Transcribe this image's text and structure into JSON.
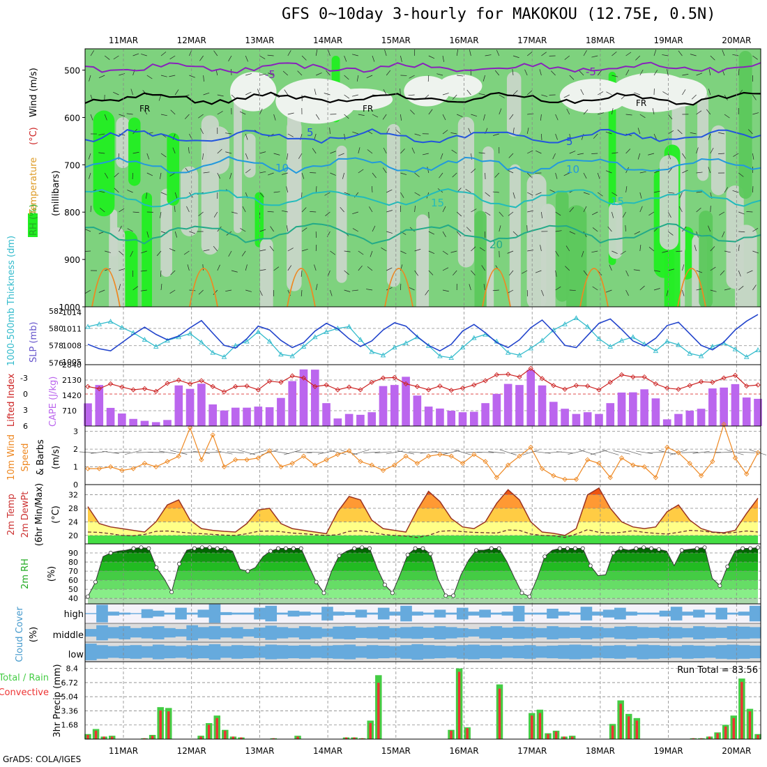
{
  "title": "GFS 0~10day 3-hourly for MAKOKOU (12.75E, 0.5N)",
  "footer": "GrADS: COLA/IGES",
  "chart_data": [
    {
      "type": "heatmap",
      "panel": "upper-air",
      "ylabel_parts": [
        {
          "text": "RH (%)",
          "color": "#22aa22"
        },
        {
          "text": "Temperature",
          "color": "#dd9922"
        },
        {
          "text": "(°C)",
          "color": "#cc2222"
        },
        {
          "text": "Wind (m/s)",
          "color": "#000000"
        }
      ],
      "ylabel2": "(millibars)",
      "yticks": [
        500,
        600,
        700,
        800,
        900,
        1000
      ],
      "ylim": [
        1000,
        455
      ],
      "dates_top": [
        "11MAR",
        "12MAR",
        "13MAR",
        "14MAR",
        "15MAR",
        "16MAR",
        "17MAR",
        "18MAR",
        "19MAR",
        "20MAR"
      ],
      "contour_labels": [
        "-5",
        "-5",
        "FR",
        "FR",
        "FR",
        "5",
        "5",
        "10",
        "10",
        "15",
        "15",
        "20"
      ],
      "contours": [
        {
          "name": "-5",
          "color": "#8822bb",
          "level_mb": 495
        },
        {
          "name": "FR",
          "color": "#000000",
          "level_mb": 560
        },
        {
          "name": "5",
          "color": "#2255dd",
          "level_mb": 640
        },
        {
          "name": "10",
          "color": "#2299dd",
          "level_mb": 700
        },
        {
          "name": "15",
          "color": "#22bbbb",
          "level_mb": 770
        },
        {
          "name": "20",
          "color": "#22aa88",
          "level_mb": 845
        }
      ]
    },
    {
      "type": "line",
      "panel": "thickness-slp",
      "ylabel_left": "1000-500mb Thickness (dm)",
      "ylabel_right": "SLP (mb)",
      "left_ticks": [
        576,
        578,
        580,
        582
      ],
      "right_ticks": [
        1005,
        1008,
        1011,
        1014
      ],
      "thickness_dm": [
        580.2,
        580.5,
        580.8,
        580.1,
        579.5,
        578.7,
        577.9,
        578.6,
        579.0,
        579.4,
        578.4,
        577.2,
        576.7,
        578.0,
        578.5,
        579.6,
        578.5,
        577.0,
        576.8,
        577.9,
        579.0,
        579.6,
        580.0,
        580.2,
        578.7,
        577.3,
        576.9,
        577.8,
        578.3,
        579.0,
        578.0,
        576.8,
        576.6,
        577.8,
        578.9,
        579.3,
        578.5,
        577.2,
        576.9,
        577.7,
        578.6,
        579.8,
        580.5,
        581.2,
        580.2,
        578.8,
        577.9,
        578.6,
        579.0,
        578.2,
        577.4,
        578.5,
        578.1,
        577.1,
        576.8,
        577.9,
        578.3,
        577.6,
        576.7,
        577.5
      ],
      "slp_mb": [
        1008.2,
        1007.4,
        1007.0,
        1008.5,
        1010.0,
        1011.3,
        1010.0,
        1009.0,
        1009.7,
        1011.2,
        1012.5,
        1010.2,
        1008.0,
        1007.5,
        1009.2,
        1011.5,
        1010.8,
        1008.9,
        1007.6,
        1008.5,
        1010.6,
        1012.0,
        1011.0,
        1009.2,
        1007.8,
        1008.8,
        1010.8,
        1012.1,
        1011.5,
        1009.6,
        1008.0,
        1007.0,
        1008.2,
        1010.6,
        1011.8,
        1010.3,
        1008.5,
        1007.6,
        1009.0,
        1011.2,
        1012.6,
        1010.5,
        1008.0,
        1007.6,
        1009.8,
        1012.0,
        1012.8,
        1010.9,
        1008.8,
        1007.9,
        1009.3,
        1011.6,
        1012.2,
        1010.1,
        1008.0,
        1007.2,
        1008.6,
        1010.8,
        1012.4,
        1013.6
      ],
      "series": [
        {
          "name": "1000-500mb Thickness (dm)",
          "color": "#33bbcc"
        },
        {
          "name": "SLP (mb)",
          "color": "#2244cc"
        }
      ]
    },
    {
      "type": "bar",
      "panel": "lifted-cape",
      "ylabel_left": "Lifted Index",
      "ylabel_right": "CAPE (J/kg)",
      "left_ticks": [
        -3,
        0,
        3,
        6
      ],
      "right_ticks": [
        710,
        1420,
        2130,
        2840
      ],
      "cape_jkg": [
        1050,
        1900,
        840,
        580,
        330,
        240,
        180,
        280,
        1880,
        1720,
        1960,
        1000,
        720,
        850,
        850,
        900,
        870,
        1300,
        2080,
        2620,
        2610,
        1060,
        350,
        560,
        520,
        640,
        1850,
        1900,
        2280,
        1410,
        900,
        810,
        710,
        640,
        660,
        1060,
        1490,
        1950,
        1900,
        2600,
        1880,
        1120,
        800,
        560,
        640,
        560,
        1060,
        1550,
        1560,
        1700,
        1280,
        310,
        560,
        710,
        800,
        1740,
        1780,
        1940,
        1320,
        1260
      ],
      "lifted_index": [
        -1.4,
        -1.0,
        -1.9,
        -1.3,
        -0.8,
        -1.0,
        -0.5,
        -2.0,
        -2.6,
        -1.9,
        -2.5,
        -1.4,
        -0.4,
        -1.4,
        -1.5,
        -0.8,
        -2.4,
        -2.2,
        -3.4,
        -3.0,
        -1.4,
        -1.7,
        -0.8,
        -1.3,
        -0.8,
        -2.2,
        -3.0,
        -3.1,
        -1.9,
        -1.4,
        -0.8,
        -1.5,
        -0.7,
        -1.1,
        -1.7,
        -2.5,
        -3.6,
        -3.7,
        -3.2,
        -4.8,
        -2.9,
        -1.6,
        -0.9,
        -1.6,
        -1.5,
        -0.8,
        -2.2,
        -3.6,
        -3.2,
        -3.2,
        -1.9,
        -1.1,
        -0.9,
        -1.6,
        -2.3,
        -2.2,
        -3.0,
        -3.5,
        -1.5,
        -1.7
      ],
      "series": [
        {
          "name": "Lifted Index",
          "color": "#cc2222"
        },
        {
          "name": "CAPE (J/kg)",
          "color": "#bb66ee"
        }
      ]
    },
    {
      "type": "line",
      "panel": "wind10m",
      "ylabel_lines": [
        "10m Wind",
        "Speed",
        "& Barbs",
        "(m/s)"
      ],
      "yticks": [
        0,
        1,
        2,
        3
      ],
      "ylim": [
        0,
        3.3
      ],
      "wind_ms": [
        0.9,
        0.9,
        1.0,
        0.8,
        0.9,
        1.2,
        1.0,
        1.3,
        1.6,
        3.2,
        1.4,
        2.8,
        1.0,
        1.4,
        1.4,
        1.5,
        1.9,
        1.0,
        1.2,
        1.6,
        1.1,
        1.4,
        1.7,
        1.9,
        1.3,
        1.1,
        0.8,
        1.1,
        1.6,
        1.2,
        1.6,
        1.7,
        1.6,
        1.2,
        1.7,
        1.3,
        0.4,
        1.1,
        1.6,
        2.1,
        0.9,
        0.5,
        0.3,
        0.3,
        1.4,
        1.2,
        0.4,
        1.5,
        1.1,
        1.0,
        0.4,
        2.1,
        1.8,
        1.2,
        0.5,
        1.3,
        3.4,
        1.5,
        0.6,
        1.8
      ],
      "series": [
        {
          "name": "10m Wind Speed",
          "color": "#ee8822"
        }
      ]
    },
    {
      "type": "area",
      "panel": "temp2m",
      "ylabel_lines": [
        "2m Temp",
        "2m DewPt",
        "(6hr Min/Max)",
        "(°C)"
      ],
      "yticks": [
        20,
        24,
        28,
        32
      ],
      "ylim": [
        17.5,
        35
      ],
      "temp_c": [
        28.5,
        23.5,
        22.5,
        22.0,
        21.5,
        21.0,
        24.0,
        29.0,
        30.5,
        24.5,
        22.0,
        21.5,
        21.2,
        21.0,
        23.5,
        27.5,
        28.0,
        23.5,
        22.0,
        21.5,
        21.0,
        20.5,
        27.0,
        31.5,
        30.5,
        24.5,
        22.0,
        21.5,
        21.0,
        27.5,
        33.0,
        30.0,
        25.0,
        22.5,
        22.0,
        24.0,
        29.5,
        33.5,
        30.5,
        24.0,
        21.0,
        20.6,
        20.0,
        22.0,
        32.0,
        34.0,
        28.0,
        24.0,
        22.5,
        22.0,
        22.5,
        27.0,
        29.0,
        24.5,
        22.0,
        21.0,
        20.8,
        21.5,
        26.5,
        31.0
      ],
      "dewpoint_c": [
        21.0,
        20.9,
        20.5,
        20.0,
        19.9,
        20.3,
        21.2,
        21.3,
        21.0,
        20.7,
        20.5,
        20.3,
        20.1,
        20.0,
        20.5,
        21.2,
        21.3,
        21.1,
        20.7,
        20.5,
        20.2,
        20.0,
        20.2,
        21.2,
        21.4,
        20.9,
        20.3,
        20.0,
        19.8,
        19.4,
        20.0,
        21.2,
        21.4,
        21.1,
        20.9,
        20.8,
        20.7,
        21.6,
        21.5,
        20.4,
        20.0,
        19.9,
        19.4,
        20.4,
        21.7,
        20.9,
        20.7,
        20.9,
        21.4,
        20.9,
        20.6,
        20.4,
        20.9,
        21.5,
        21.3,
        20.9,
        20.6,
        20.9,
        21.3,
        21.0
      ],
      "series": [
        {
          "name": "2m Temp",
          "color": "#993322"
        },
        {
          "name": "2m DewPt",
          "color": "#663333"
        }
      ]
    },
    {
      "type": "area",
      "panel": "rh2m",
      "ylabel_lines": [
        "2m RH",
        "(%)"
      ],
      "yticks": [
        40,
        50,
        60,
        70,
        80,
        90
      ],
      "ylim": [
        34,
        100
      ],
      "rh_pct": [
        42,
        58,
        86,
        90,
        92,
        93,
        95,
        96,
        95,
        74,
        62,
        47,
        78,
        93,
        95,
        96,
        96,
        95,
        95,
        92,
        72,
        70,
        74,
        86,
        92,
        95,
        95,
        95,
        95,
        76,
        58,
        46,
        70,
        87,
        92,
        95,
        96,
        95,
        73,
        55,
        46,
        66,
        88,
        95,
        95,
        89,
        61,
        43,
        43,
        66,
        82,
        93,
        93,
        95,
        95,
        81,
        63,
        46,
        42,
        62,
        86,
        93,
        95,
        95,
        95,
        95,
        76,
        65,
        66,
        90,
        95,
        93,
        95,
        96,
        95,
        94,
        92,
        76,
        93,
        94,
        95,
        96,
        62,
        54,
        75,
        92,
        95,
        95,
        96
      ],
      "series": [
        {
          "name": "2m RH",
          "color": "#22aa22"
        }
      ]
    },
    {
      "type": "heatmap",
      "panel": "cloud",
      "ylabel_lines": [
        "Cloud Cover",
        "(%)"
      ],
      "yticks": [
        "high",
        "middle",
        "low"
      ],
      "high_pct": [
        5,
        90,
        20,
        10,
        5,
        45,
        30,
        10,
        60,
        10,
        40,
        95,
        15,
        10,
        10,
        60,
        80,
        10,
        30,
        20,
        10,
        70,
        20,
        15,
        40,
        10,
        60,
        20,
        80,
        20,
        10,
        40,
        10,
        60,
        20,
        40,
        10,
        20,
        80,
        10,
        10,
        50,
        20,
        10,
        70,
        20,
        40,
        60,
        20,
        10,
        10,
        30,
        70,
        20,
        40,
        10,
        60,
        10,
        20,
        80
      ],
      "mid_pct": [
        40,
        80,
        60,
        70,
        50,
        60,
        70,
        50,
        40,
        80,
        60,
        70,
        50,
        60,
        40,
        55,
        75,
        60,
        50,
        70,
        60,
        45,
        65,
        70,
        55,
        60,
        70,
        50,
        60,
        65,
        55,
        70,
        60,
        50,
        40,
        60,
        70,
        55,
        65,
        60,
        50,
        70,
        60,
        55,
        70,
        60,
        50,
        65,
        70,
        60,
        55,
        65,
        60,
        50,
        70,
        60,
        55,
        70,
        65,
        60
      ],
      "low_pct": [
        85,
        70,
        60,
        65,
        70,
        60,
        75,
        65,
        60,
        70,
        65,
        80,
        60,
        70,
        65,
        60,
        75,
        70,
        65,
        70,
        60,
        65,
        70,
        75,
        60,
        70,
        65,
        60,
        70,
        80,
        70,
        65,
        60,
        70,
        75,
        65,
        70,
        60,
        65,
        70,
        60,
        65,
        70,
        75,
        70,
        60,
        65,
        70,
        60,
        75,
        70,
        65,
        60,
        70,
        65,
        60,
        70,
        75,
        70,
        65
      ],
      "series": [
        {
          "name": "Cloud Cover",
          "color": "#66aadd"
        }
      ]
    },
    {
      "type": "bar",
      "panel": "precip",
      "ylabel_left_lines": [
        "Total / Rain",
        "Convective"
      ],
      "ylabel": "3hr Precip (mm)",
      "yticks": [
        "1.68",
        "3.36",
        "5.04",
        "6.72",
        "8.4"
      ],
      "run_total_label": "Run Total = 83.56",
      "dates_bottom": [
        "11MAR",
        "12MAR",
        "13MAR",
        "14MAR",
        "15MAR",
        "16MAR",
        "17MAR",
        "18MAR",
        "19MAR",
        "20MAR"
      ],
      "total_mm": [
        0.6,
        1.2,
        0.3,
        0.4,
        0,
        0,
        0,
        0.1,
        0.5,
        3.8,
        3.7,
        0,
        0,
        0,
        0.4,
        1.9,
        2.8,
        1.1,
        0.3,
        0.2,
        0,
        0,
        0,
        0.1,
        0,
        0,
        0.4,
        0,
        0,
        0,
        0,
        0,
        0.2,
        0.2,
        0.1,
        2.2,
        7.6,
        0,
        0,
        0,
        0,
        0,
        0,
        0,
        0,
        1.1,
        8.4,
        1.4,
        0,
        0,
        0,
        6.5,
        0,
        0,
        0,
        3.1,
        3.5,
        0.7,
        1.0,
        0.3,
        0.4,
        0,
        0,
        0,
        0,
        1.8,
        4.6,
        3.0,
        2.5,
        0,
        0,
        0,
        0,
        0,
        0,
        0.1,
        0.1,
        0.3,
        0.8,
        1.7,
        2.8,
        7.2,
        3.6,
        0.6
      ],
      "rain_mm": [
        0.5,
        1.0,
        0.3,
        0.3,
        0,
        0,
        0,
        0.1,
        0.4,
        3.4,
        3.3,
        0,
        0,
        0,
        0.3,
        1.7,
        2.5,
        1.0,
        0.3,
        0.2,
        0,
        0,
        0,
        0.1,
        0,
        0,
        0.3,
        0,
        0,
        0,
        0,
        0,
        0.2,
        0.2,
        0.1,
        1.9,
        6.7,
        0,
        0,
        0,
        0,
        0,
        0,
        0,
        0,
        1.0,
        8.0,
        1.3,
        0,
        0,
        0,
        6.0,
        0,
        0,
        0,
        2.8,
        3.1,
        0.6,
        0.9,
        0.3,
        0.3,
        0,
        0,
        0,
        0,
        1.6,
        4.2,
        2.7,
        2.2,
        0,
        0,
        0,
        0,
        0,
        0,
        0.1,
        0.1,
        0.3,
        0.7,
        1.5,
        2.5,
        6.8,
        3.3,
        0.5
      ],
      "series": [
        {
          "name": "Total / Rain",
          "color": "#44cc44"
        },
        {
          "name": "Convective",
          "color": "#ee3333"
        }
      ]
    }
  ]
}
